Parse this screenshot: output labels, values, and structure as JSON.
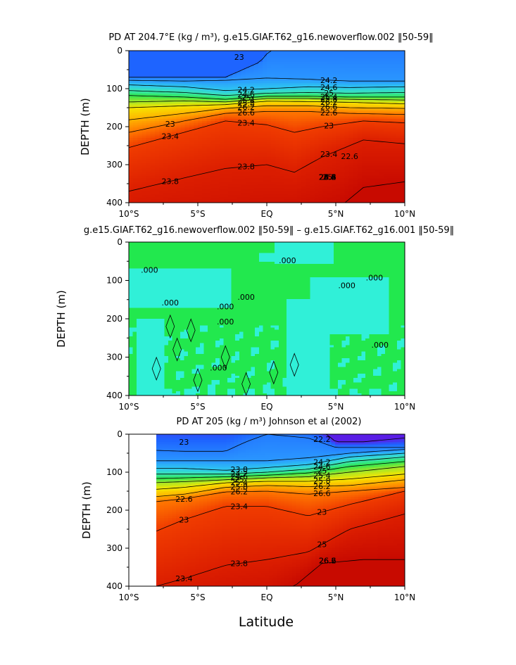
{
  "chart_data": [
    {
      "type": "heatmap",
      "title": "PD AT 204.7°E (kg / m³), g.e15.GIAF.T62_g16.newoverflow.002 ‖50-59‖",
      "xlabel": "",
      "ylabel": "DEPTH (m)",
      "x_ticks": [
        "10°S",
        "5°S",
        "EQ",
        "5°N",
        "10°N"
      ],
      "x_range": [
        -10,
        10
      ],
      "y_ticks": [
        "0",
        "100",
        "200",
        "300",
        "400"
      ],
      "y_range": [
        0,
        400
      ],
      "y_inverted": true,
      "contour_labels": [
        "23",
        "22.6",
        "23",
        "23.4",
        "23.8",
        "24.2",
        "24.6",
        "25",
        "25.4",
        "25.8",
        "26.2",
        "26.6",
        "23.4",
        "23.8",
        "24.2",
        "24.6",
        "25",
        "25.4",
        "25.8",
        "26.2",
        "26.6",
        "22.6",
        "23",
        "23.4",
        "23.8",
        "24.2",
        "24.6",
        "25",
        "25.4",
        "25.8",
        "26.2",
        "26.6",
        "26.6"
      ],
      "color_scale": [
        {
          "value": 22.4,
          "color": "#0f0fff"
        },
        {
          "value": 22.6,
          "color": "#1e64ff"
        },
        {
          "value": 23.0,
          "color": "#2a96ff"
        },
        {
          "value": 23.4,
          "color": "#2dc8f0"
        },
        {
          "value": 23.8,
          "color": "#3ae6b4"
        },
        {
          "value": 24.2,
          "color": "#2ee650"
        },
        {
          "value": 24.6,
          "color": "#9fe62a"
        },
        {
          "value": 25.0,
          "color": "#f5e600"
        },
        {
          "value": 25.4,
          "color": "#ffb400"
        },
        {
          "value": 25.8,
          "color": "#ff7800"
        },
        {
          "value": 26.2,
          "color": "#f03c00"
        },
        {
          "value": 26.6,
          "color": "#dc1e00"
        },
        {
          "value": 27.0,
          "color": "#c80a00"
        }
      ]
    },
    {
      "type": "heatmap",
      "title": "g.e15.GIAF.T62_g16.newoverflow.002 ‖50-59‖ – g.e15.GIAF.T62_g16.001 ‖50-59‖",
      "xlabel": "",
      "ylabel": "DEPTH (m)",
      "x_ticks": [
        "10°S",
        "5°S",
        "EQ",
        "5°N",
        "10°N"
      ],
      "x_range": [
        -10,
        10
      ],
      "y_ticks": [
        "0",
        "100",
        "200",
        "300",
        "400"
      ],
      "y_range": [
        0,
        400
      ],
      "y_inverted": true,
      "contour_labels": [
        ".000",
        ".000",
        ".000",
        ".000",
        ".000",
        ".000",
        ".000",
        ".000",
        ".000",
        ".000"
      ],
      "colors": {
        "zero": "#22e84e",
        "negative": "#30f0d8",
        "positive": "#ffffff"
      }
    },
    {
      "type": "heatmap",
      "title": "PD AT 205 (kg / m³) Johnson et al (2002)",
      "xlabel": "Latitude",
      "ylabel": "DEPTH (m)",
      "x_ticks": [
        "10°S",
        "5°S",
        "EQ",
        "5°N",
        "10°N"
      ],
      "x_range": [
        -10,
        10
      ],
      "data_x_range": [
        -8,
        10
      ],
      "y_ticks": [
        "0",
        "100",
        "200",
        "300",
        "400"
      ],
      "y_range": [
        0,
        400
      ],
      "y_inverted": true,
      "contour_labels": [
        "23",
        "22.2",
        "22.6",
        "23",
        "23.4",
        "23.8",
        "24.2",
        "24.6",
        "25",
        "25.4",
        "25.8",
        "26.2",
        "23.4",
        "23.8",
        "24.2",
        "24.6",
        "25",
        "25.4",
        "25.8",
        "26.2",
        "26.6",
        "23",
        "25",
        "26.2",
        "26.6",
        "26.6"
      ],
      "color_scale": [
        {
          "value": 22.2,
          "color": "#5a1ee6"
        },
        {
          "value": 22.6,
          "color": "#1e64ff"
        },
        {
          "value": 23.0,
          "color": "#2a96ff"
        },
        {
          "value": 23.4,
          "color": "#2dc8f0"
        },
        {
          "value": 23.8,
          "color": "#3ae6b4"
        },
        {
          "value": 24.2,
          "color": "#2ee650"
        },
        {
          "value": 24.6,
          "color": "#9fe62a"
        },
        {
          "value": 25.0,
          "color": "#f5e600"
        },
        {
          "value": 25.4,
          "color": "#ffb400"
        },
        {
          "value": 25.8,
          "color": "#ff7800"
        },
        {
          "value": 26.2,
          "color": "#f03c00"
        },
        {
          "value": 26.6,
          "color": "#dc1e00"
        },
        {
          "value": 27.0,
          "color": "#c80a00"
        }
      ]
    }
  ]
}
